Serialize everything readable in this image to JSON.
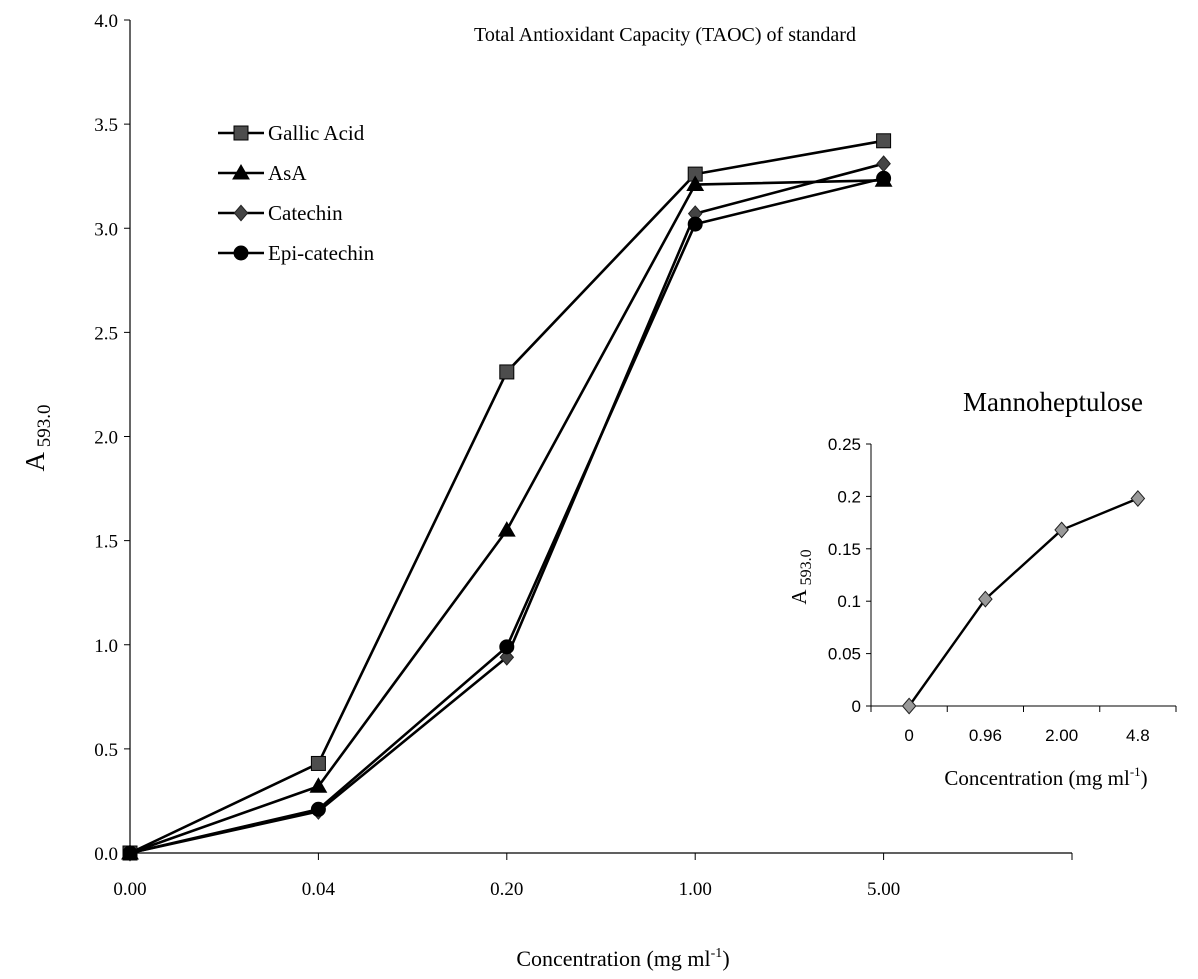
{
  "chart_data": [
    {
      "type": "line",
      "title": "Total Antioxidant Capacity (TAOC) of standard",
      "xlabel": "Concentration (mg ml",
      "xlabel_sup": "-1",
      "xlabel_close": ")",
      "ylabel": "A",
      "ylabel_sub": "593.0",
      "categories": [
        "0.00",
        "0.04",
        "0.20",
        "1.00",
        "5.00"
      ],
      "ylim": [
        0,
        4
      ],
      "yticks": [
        "0.0",
        "0.5",
        "1.0",
        "1.5",
        "2.0",
        "2.5",
        "3.0",
        "3.5",
        "4.0"
      ],
      "grid": false,
      "legend_position": "top-left",
      "series": [
        {
          "name": "Gallic Acid",
          "marker": "square",
          "color": "#4d4d4d",
          "values": [
            0.0,
            0.43,
            2.31,
            3.26,
            3.42
          ]
        },
        {
          "name": "AsA",
          "marker": "triangle",
          "color": "#000000",
          "values": [
            0.0,
            0.32,
            1.55,
            3.21,
            3.23
          ]
        },
        {
          "name": "Catechin",
          "marker": "diamond",
          "color": "#444444",
          "values": [
            0.0,
            0.2,
            0.94,
            3.07,
            3.31
          ]
        },
        {
          "name": "Epi-catechin",
          "marker": "circle",
          "color": "#000000",
          "values": [
            0.0,
            0.21,
            0.99,
            3.02,
            3.24
          ]
        }
      ]
    },
    {
      "type": "line",
      "title": "Mannoheptulose",
      "xlabel": "Concentration (mg ml",
      "xlabel_sup": "-1",
      "xlabel_close": ")",
      "ylabel": "A",
      "ylabel_sub": "593.0",
      "categories": [
        "0",
        "0.96",
        "2.00",
        "4.8"
      ],
      "ylim": [
        0,
        0.25
      ],
      "yticks": [
        "0",
        "0.05",
        "0.1",
        "0.15",
        "0.2",
        "0.25"
      ],
      "grid": false,
      "series": [
        {
          "marker": "diamond",
          "color": "#999999",
          "values": [
            0.0,
            0.102,
            0.168,
            0.198
          ]
        }
      ]
    }
  ]
}
